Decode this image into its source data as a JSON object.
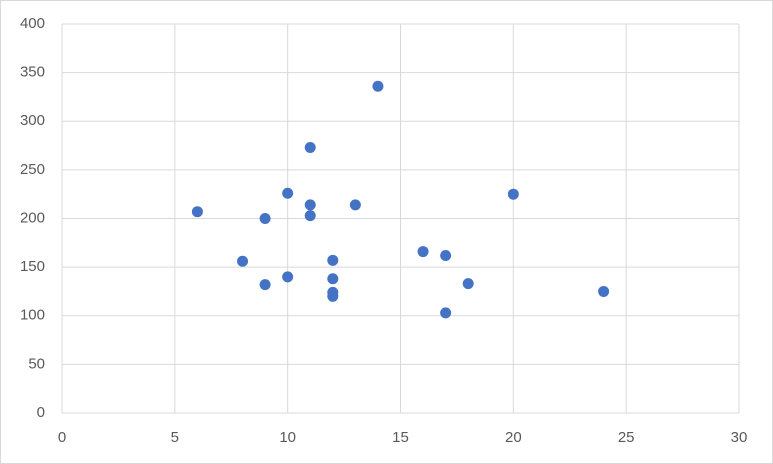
{
  "chart_data": {
    "type": "scatter",
    "color": "#4472c4",
    "grid": true,
    "x": [
      6,
      8,
      9,
      9,
      10,
      10,
      11,
      11,
      11,
      12,
      12,
      12,
      12,
      13,
      14,
      16,
      17,
      17,
      18,
      20,
      24
    ],
    "values": [
      207,
      156,
      200,
      132,
      226,
      140,
      273,
      214,
      203,
      157,
      138,
      124,
      120,
      214,
      336,
      166,
      162,
      103,
      133,
      225,
      125
    ],
    "xlim": [
      0,
      30
    ],
    "xticks": [
      0,
      5,
      10,
      15,
      20,
      25,
      30
    ],
    "ylim": [
      0,
      400
    ],
    "yticks": [
      0,
      50,
      100,
      150,
      200,
      250,
      300,
      350,
      400
    ]
  }
}
